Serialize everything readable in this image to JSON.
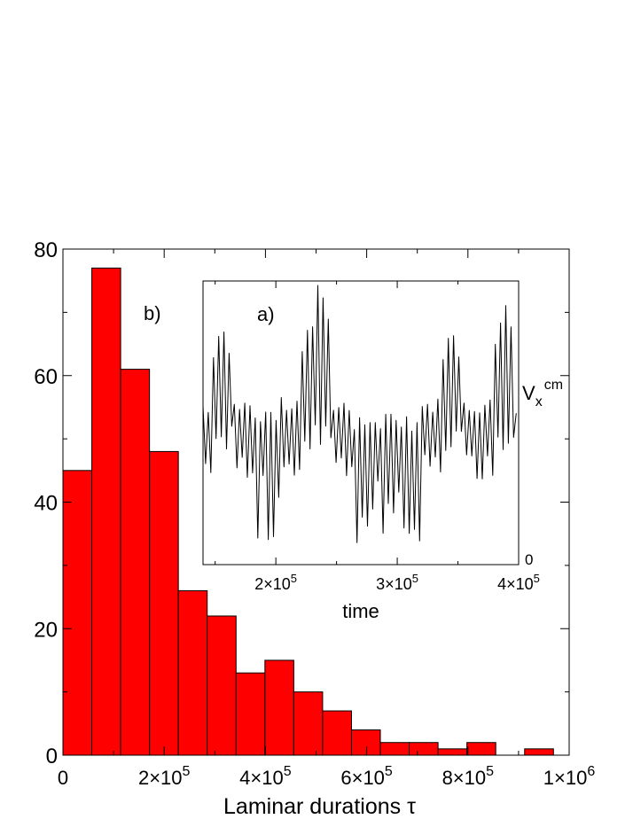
{
  "chart_data": [
    {
      "type": "bar",
      "panel_label": "b)",
      "xlabel": "Laminar durations τ",
      "ylabel": "",
      "xlim": [
        0,
        1000000
      ],
      "ylim": [
        0,
        80
      ],
      "bin_width": 57000,
      "bins": [
        {
          "x_start": 0,
          "value": 45
        },
        {
          "x_start": 57000,
          "value": 77
        },
        {
          "x_start": 114000,
          "value": 61
        },
        {
          "x_start": 171000,
          "value": 48
        },
        {
          "x_start": 228000,
          "value": 26
        },
        {
          "x_start": 285000,
          "value": 22
        },
        {
          "x_start": 342000,
          "value": 13
        },
        {
          "x_start": 399000,
          "value": 15
        },
        {
          "x_start": 456000,
          "value": 10
        },
        {
          "x_start": 513000,
          "value": 7
        },
        {
          "x_start": 570000,
          "value": 4
        },
        {
          "x_start": 627000,
          "value": 2
        },
        {
          "x_start": 684000,
          "value": 2
        },
        {
          "x_start": 741000,
          "value": 1
        },
        {
          "x_start": 798000,
          "value": 2
        },
        {
          "x_start": 855000,
          "value": 0
        },
        {
          "x_start": 912000,
          "value": 1
        }
      ],
      "bar_color": "#ff0000",
      "xticks": [
        {
          "value": 0,
          "mant": "0",
          "exp": ""
        },
        {
          "value": 200000,
          "mant": "2×10",
          "exp": "5"
        },
        {
          "value": 400000,
          "mant": "4×10",
          "exp": "5"
        },
        {
          "value": 600000,
          "mant": "6×10",
          "exp": "5"
        },
        {
          "value": 800000,
          "mant": "8×10",
          "exp": "5"
        },
        {
          "value": 1000000,
          "mant": "1×10",
          "exp": "6"
        }
      ],
      "yticks": [
        0,
        20,
        40,
        60,
        80
      ]
    },
    {
      "type": "line",
      "panel_label": "a)",
      "xlabel": "time",
      "ylabel_main": "V",
      "ylabel_sub": "x",
      "ylabel_sup": "cm",
      "y_tick_label": "0",
      "xlim": [
        140000,
        400000
      ],
      "xticks": [
        {
          "value": 200000,
          "mant": "2×10",
          "exp": "5"
        },
        {
          "value": 300000,
          "mant": "3×10",
          "exp": "5"
        },
        {
          "value": 400000,
          "mant": "4×10",
          "exp": "5"
        }
      ],
      "series": [
        {
          "period": 4300,
          "baseline_high": 0.5,
          "baseline_low": 0.22,
          "laminar_low": 0.07,
          "bursts": [
            {
              "t": 155500,
              "peak": 0.85
            },
            {
              "t": 228500,
              "peak": 0.87
            },
            {
              "t": 235500,
              "peak": 1.0
            },
            {
              "t": 344500,
              "peak": 0.84
            },
            {
              "t": 389000,
              "peak": 0.92
            }
          ]
        }
      ]
    }
  ]
}
